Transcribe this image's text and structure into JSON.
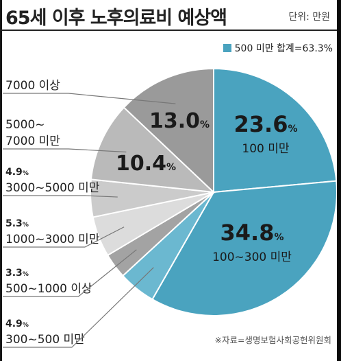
{
  "title": "65세 이후 노후의료비 예상액",
  "unit_label": "단위: 만원",
  "legend": {
    "label": "500 미만 합계=63.3%",
    "color": "#4aa3bf"
  },
  "source": "※자료=생명보험사회공헌위원회",
  "chart_data": {
    "type": "pie",
    "title": "65세 이후 노후의료비 예상액",
    "unit": "단위: 만원",
    "percent_sign": "%",
    "categories": [
      "100 미만",
      "100~300 미만",
      "300~500 미만",
      "500~1000 이상",
      "1000~3000 미만",
      "3000~5000 미만",
      "5000~7000 미만",
      "7000 이상"
    ],
    "values": [
      23.6,
      34.8,
      4.9,
      3.3,
      5.3,
      4.9,
      10.4,
      13.0
    ],
    "value_labels": [
      "23.6",
      "34.8",
      "4.9",
      "3.3",
      "5.3",
      "4.9",
      "10.4",
      "13.0"
    ],
    "colors": [
      "#4aa3bf",
      "#4aa3bf",
      "#6bb8d0",
      "#a3a3a3",
      "#dcdcdc",
      "#cbcbcb",
      "#bababa",
      "#9a9a9a"
    ],
    "legend_placement": "top-right"
  }
}
